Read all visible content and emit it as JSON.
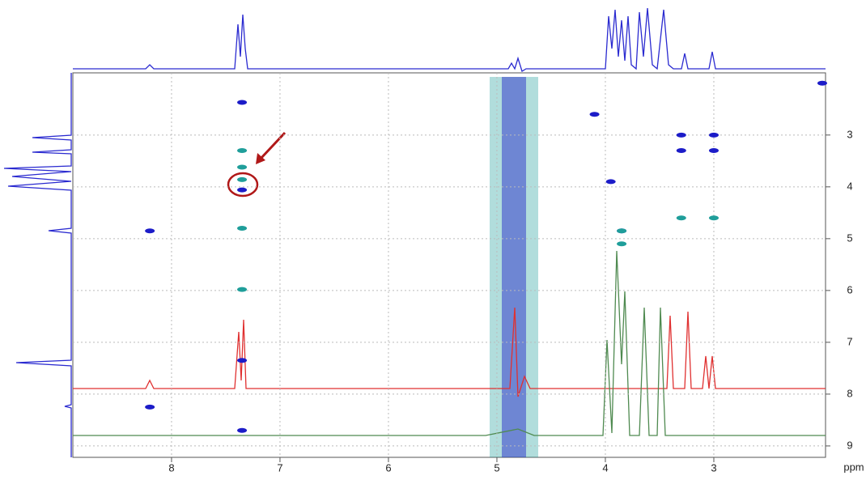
{
  "chart_data": {
    "type": "scatter",
    "x_label": "ppm",
    "xlim": [
      8.91,
      1.97
    ],
    "ylim": [
      1.8,
      9.22
    ],
    "xticks": [
      8,
      7,
      6,
      5,
      4,
      3
    ],
    "yticks": [
      3,
      4,
      5,
      6,
      7,
      8,
      9
    ],
    "grid": true,
    "series": [
      {
        "color": "#1c1cc8",
        "x": [
          8.2,
          8.2,
          7.35,
          7.35,
          7.35,
          3.95,
          3.3,
          3.0,
          3.3,
          3.0,
          4.1,
          2.0,
          7.35,
          3.85
        ],
        "y": [
          4.85,
          8.25,
          7.35,
          4.06,
          8.7,
          3.9,
          3.3,
          3.0,
          3.0,
          3.3,
          2.6,
          2.0,
          2.37,
          4.85
        ]
      },
      {
        "color": "#1f9e9a",
        "x": [
          7.35,
          7.35,
          7.35,
          7.35,
          7.35,
          3.3,
          3.0,
          3.85,
          3.85
        ],
        "y": [
          3.3,
          3.62,
          3.86,
          4.8,
          5.98,
          4.6,
          4.6,
          5.1,
          4.85
        ]
      }
    ]
  }
}
